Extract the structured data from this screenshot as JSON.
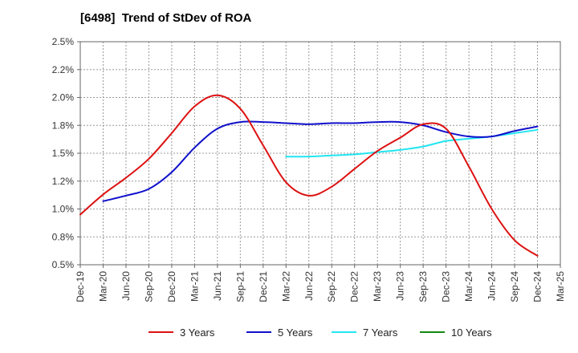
{
  "chart_data": {
    "type": "line",
    "title": "[6498]  Trend of StDev of ROA",
    "xlabel": "",
    "ylabel": "",
    "x_categories": [
      "Dec-19",
      "Mar-20",
      "Jun-20",
      "Sep-20",
      "Dec-20",
      "Mar-21",
      "Jun-21",
      "Sep-21",
      "Dec-21",
      "Mar-22",
      "Jun-22",
      "Sep-22",
      "Dec-22",
      "Mar-23",
      "Jun-23",
      "Sep-23",
      "Dec-23",
      "Mar-24",
      "Jun-24",
      "Sep-24",
      "Dec-24",
      "Mar-25"
    ],
    "y_ticks": [
      "0.5%",
      "0.8%",
      "1.0%",
      "1.2%",
      "1.5%",
      "1.8%",
      "2.0%",
      "2.2%",
      "2.5%"
    ],
    "ylim": [
      0.5,
      2.5
    ],
    "grid": true,
    "legend_position": "bottom",
    "series": [
      {
        "name": "3 Years",
        "color": "#dd1111",
        "values": [
          0.95,
          1.13,
          1.28,
          1.45,
          1.68,
          1.92,
          2.02,
          1.9,
          1.57,
          1.24,
          1.12,
          1.2,
          1.36,
          1.52,
          1.64,
          1.76,
          1.72,
          1.38,
          1.0,
          0.72,
          0.58,
          null
        ]
      },
      {
        "name": "5 Years",
        "color": "#1010cc",
        "values": [
          null,
          1.07,
          1.12,
          1.18,
          1.33,
          1.55,
          1.72,
          1.78,
          1.78,
          1.77,
          1.76,
          1.77,
          1.77,
          1.78,
          1.78,
          1.75,
          1.69,
          1.65,
          1.65,
          1.7,
          1.74,
          null
        ]
      },
      {
        "name": "7 Years",
        "color": "#22e5f0",
        "values": [
          null,
          null,
          null,
          null,
          null,
          null,
          null,
          null,
          null,
          1.47,
          1.47,
          1.48,
          1.49,
          1.51,
          1.53,
          1.56,
          1.61,
          1.63,
          1.65,
          1.68,
          1.71,
          null
        ]
      },
      {
        "name": "10 Years",
        "color": "#118811",
        "values": [
          null,
          null,
          null,
          null,
          null,
          null,
          null,
          null,
          null,
          null,
          null,
          null,
          null,
          null,
          null,
          null,
          null,
          null,
          null,
          null,
          null,
          null
        ]
      }
    ]
  }
}
